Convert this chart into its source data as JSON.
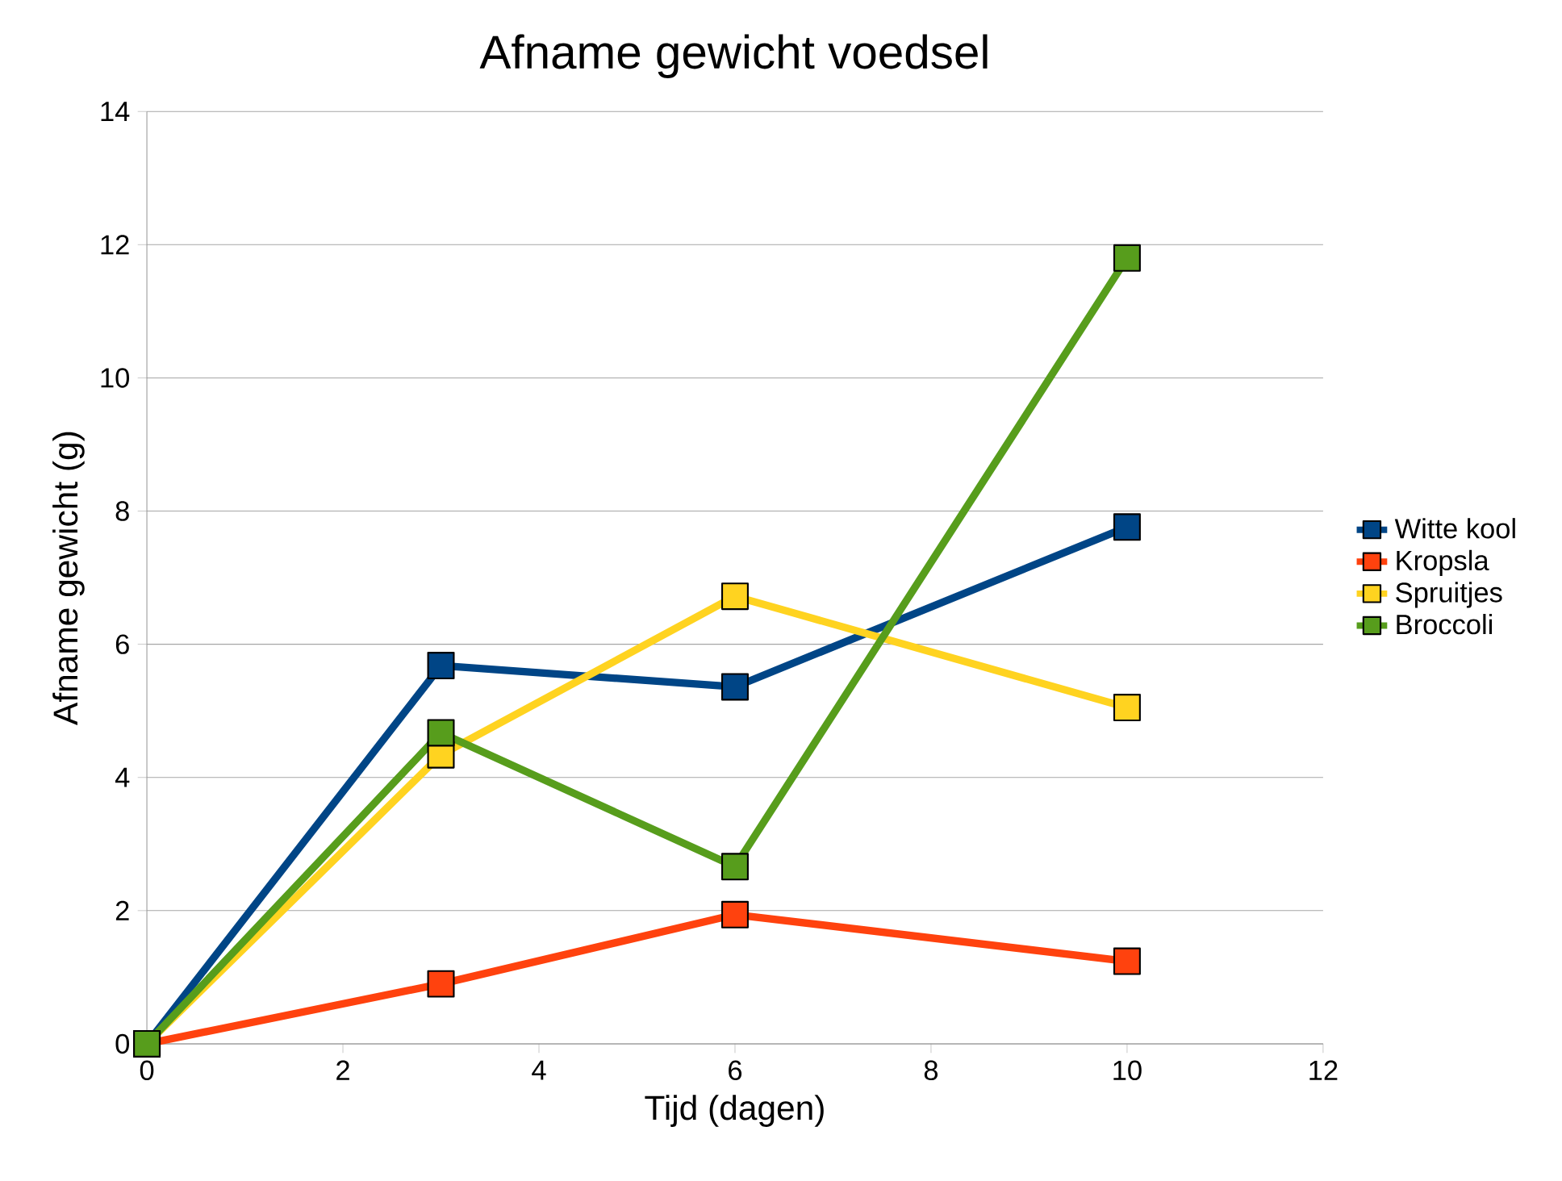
{
  "chart_data": {
    "type": "line",
    "title": "Afname gewicht voedsel",
    "xlabel": "Tijd (dagen)",
    "ylabel": "Afname gewicht (g)",
    "x": [
      0,
      3,
      6,
      10
    ],
    "series": [
      {
        "name": "Witte kool",
        "color": "#004586",
        "values": [
          0,
          5.68,
          5.36,
          7.76
        ]
      },
      {
        "name": "Kropsla",
        "color": "#ff420e",
        "values": [
          0,
          0.9,
          1.94,
          1.24
        ]
      },
      {
        "name": "Spruitjes",
        "color": "#ffd320",
        "values": [
          0,
          4.34,
          6.72,
          5.05
        ]
      },
      {
        "name": "Broccoli",
        "color": "#579d1c",
        "values": [
          0,
          4.67,
          2.66,
          11.8
        ]
      }
    ],
    "xlim": [
      0,
      12
    ],
    "xticks": [
      0,
      2,
      4,
      6,
      8,
      10,
      12
    ],
    "ylim": [
      0,
      14
    ],
    "yticks": [
      0,
      2,
      4,
      6,
      8,
      10,
      12,
      14
    ],
    "grid": "y",
    "legend": "right",
    "marker": "square",
    "line_style": "solid"
  }
}
